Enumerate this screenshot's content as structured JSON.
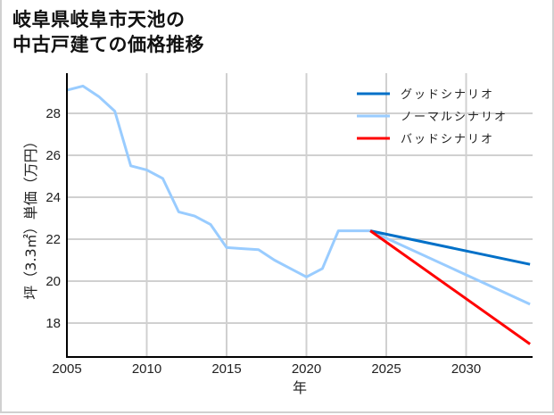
{
  "title": {
    "line1": "岐阜県岐阜市天池の",
    "line2": "中古戸建ての価格推移"
  },
  "colors": {
    "good": "#0070c8",
    "normal": "#99ccff",
    "bad": "#ff0000",
    "grid": "#d0d0d0",
    "axis": "#000000"
  },
  "chart_data": {
    "type": "line",
    "title": "岐阜県岐阜市天池の中古戸建ての価格推移",
    "xlabel": "年",
    "ylabel": "坪（3.3㎡）単価（万円）",
    "xlim": [
      2005,
      2034
    ],
    "ylim": [
      16.5,
      29.5
    ],
    "xticks": [
      2005,
      2010,
      2015,
      2020,
      2025,
      2030
    ],
    "yticks": [
      18,
      20,
      22,
      24,
      26,
      28
    ],
    "grid": true,
    "legend_position": "upper right",
    "series": [
      {
        "name": "ノーマルシナリオ",
        "role": "historical",
        "color": "#99ccff",
        "x": [
          2005,
          2006,
          2007,
          2008,
          2009,
          2010,
          2011,
          2012,
          2013,
          2014,
          2015,
          2016,
          2017,
          2018,
          2019,
          2020,
          2021,
          2022,
          2023,
          2024
        ],
        "values": [
          29.1,
          29.3,
          28.8,
          28.1,
          25.5,
          25.3,
          24.9,
          23.3,
          23.1,
          22.7,
          21.6,
          21.55,
          21.5,
          21.0,
          20.6,
          20.2,
          20.6,
          22.4,
          22.4,
          22.4
        ]
      },
      {
        "name": "グッドシナリオ",
        "color": "#0070c8",
        "x": [
          2024,
          2034
        ],
        "values": [
          22.4,
          20.8
        ]
      },
      {
        "name": "ノーマルシナリオ",
        "color": "#99ccff",
        "x": [
          2024,
          2034
        ],
        "values": [
          22.4,
          18.9
        ]
      },
      {
        "name": "バッドシナリオ",
        "color": "#ff0000",
        "x": [
          2024,
          2034
        ],
        "values": [
          22.4,
          17.0
        ]
      }
    ]
  },
  "legend": {
    "items": [
      {
        "label": "グッドシナリオ",
        "color": "#0070c8"
      },
      {
        "label": "ノーマルシナリオ",
        "color": "#99ccff"
      },
      {
        "label": "バッドシナリオ",
        "color": "#ff0000"
      }
    ]
  },
  "axes": {
    "x_ticks": [
      "2005",
      "2010",
      "2015",
      "2020",
      "2025",
      "2030"
    ],
    "y_ticks": [
      "18",
      "20",
      "22",
      "24",
      "26",
      "28"
    ],
    "xlabel": "年",
    "ylabel": "坪（3.3㎡）単価（万円）"
  }
}
